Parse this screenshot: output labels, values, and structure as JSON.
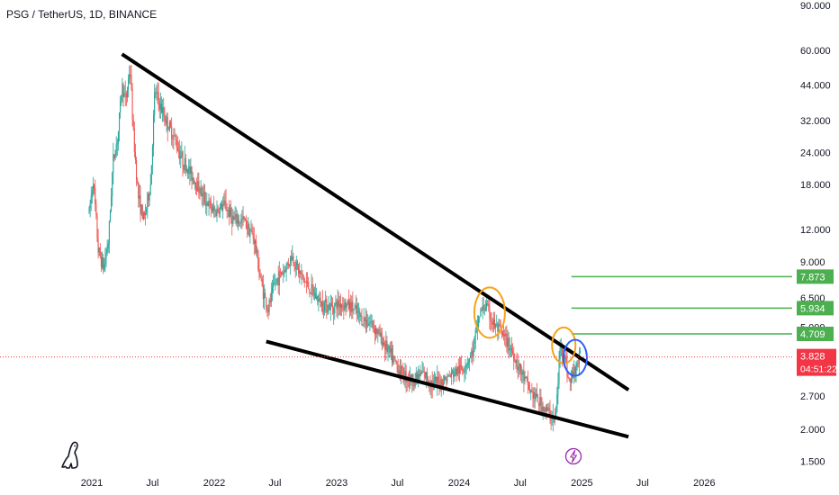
{
  "symbol": {
    "title": "PSG / TetherUS, 1D, BINANCE"
  },
  "colors": {
    "up": "#26a69a",
    "down": "#ef5350",
    "trendline": "#000000",
    "level_line": "#4caf50",
    "level_box": "#4caf50",
    "price_box": "#f23645",
    "circle_orange": "#f7a21b",
    "circle_blue": "#2962ff",
    "flash_icon": "#9c27b0"
  },
  "chart_data": {
    "type": "candlestick",
    "scale": "log",
    "ylim": [
      1.4,
      95
    ],
    "y_ticks": [
      {
        "value": 90,
        "label": "90.000"
      },
      {
        "value": 60,
        "label": "60.000"
      },
      {
        "value": 44,
        "label": "44.000"
      },
      {
        "value": 32,
        "label": "32.000"
      },
      {
        "value": 24,
        "label": "24.000"
      },
      {
        "value": 18,
        "label": "18.000"
      },
      {
        "value": 12,
        "label": "12.000"
      },
      {
        "value": 9,
        "label": "9.000"
      },
      {
        "value": 6.5,
        "label": "6.500"
      },
      {
        "value": 5.0,
        "label": "5.000"
      },
      {
        "value": 2.7,
        "label": "2.700"
      },
      {
        "value": 2.0,
        "label": "2.000"
      },
      {
        "value": 1.5,
        "label": "1.500"
      }
    ],
    "x_ticks": [
      {
        "date": "2021-01-01",
        "label": "2021"
      },
      {
        "date": "2021-07-01",
        "label": "Jul"
      },
      {
        "date": "2022-01-01",
        "label": "2022"
      },
      {
        "date": "2022-07-01",
        "label": "Jul"
      },
      {
        "date": "2023-01-01",
        "label": "2023"
      },
      {
        "date": "2023-07-01",
        "label": "Jul"
      },
      {
        "date": "2024-01-01",
        "label": "2024"
      },
      {
        "date": "2024-07-01",
        "label": "Jul"
      },
      {
        "date": "2025-01-01",
        "label": "2025"
      },
      {
        "date": "2025-07-01",
        "label": "Jul"
      },
      {
        "date": "2026-01-01",
        "label": "2026"
      }
    ],
    "price_path": [
      [
        "2020-12-24",
        14
      ],
      [
        "2021-01-05",
        19
      ],
      [
        "2021-01-20",
        10
      ],
      [
        "2021-02-05",
        8.5
      ],
      [
        "2021-02-20",
        11
      ],
      [
        "2021-03-05",
        22
      ],
      [
        "2021-03-20",
        28
      ],
      [
        "2021-04-01",
        44
      ],
      [
        "2021-04-12",
        38
      ],
      [
        "2021-04-25",
        52
      ],
      [
        "2021-05-05",
        28
      ],
      [
        "2021-05-20",
        16
      ],
      [
        "2021-06-05",
        13
      ],
      [
        "2021-06-25",
        18
      ],
      [
        "2021-07-08",
        42
      ],
      [
        "2021-07-25",
        36
      ],
      [
        "2021-08-10",
        32
      ],
      [
        "2021-09-01",
        28
      ],
      [
        "2021-10-01",
        22
      ],
      [
        "2021-11-01",
        19
      ],
      [
        "2021-12-01",
        16
      ],
      [
        "2022-01-01",
        14
      ],
      [
        "2022-02-01",
        15
      ],
      [
        "2022-03-01",
        13
      ],
      [
        "2022-04-01",
        13
      ],
      [
        "2022-05-01",
        11
      ],
      [
        "2022-05-20",
        7.5
      ],
      [
        "2022-06-10",
        5.8
      ],
      [
        "2022-07-01",
        7.5
      ],
      [
        "2022-08-01",
        8.5
      ],
      [
        "2022-08-20",
        9.5
      ],
      [
        "2022-09-15",
        8
      ],
      [
        "2022-10-15",
        7
      ],
      [
        "2022-11-15",
        6.2
      ],
      [
        "2022-12-15",
        6.0
      ],
      [
        "2023-01-15",
        6.2
      ],
      [
        "2023-02-15",
        6.0
      ],
      [
        "2023-03-15",
        5.4
      ],
      [
        "2023-04-15",
        5.2
      ],
      [
        "2023-05-15",
        4.5
      ],
      [
        "2023-06-15",
        3.8
      ],
      [
        "2023-07-15",
        3.3
      ],
      [
        "2023-08-15",
        3.1
      ],
      [
        "2023-09-15",
        3.3
      ],
      [
        "2023-10-15",
        3.0
      ],
      [
        "2023-11-15",
        3.1
      ],
      [
        "2023-12-15",
        3.3
      ],
      [
        "2024-01-15",
        3.5
      ],
      [
        "2024-02-10",
        4.0
      ],
      [
        "2024-03-01",
        5.6
      ],
      [
        "2024-03-20",
        6.1
      ],
      [
        "2024-04-10",
        5.2
      ],
      [
        "2024-05-01",
        4.8
      ],
      [
        "2024-06-01",
        4.2
      ],
      [
        "2024-07-01",
        3.4
      ],
      [
        "2024-08-01",
        2.8
      ],
      [
        "2024-09-01",
        2.5
      ],
      [
        "2024-10-01",
        2.25
      ],
      [
        "2024-10-15",
        2.2
      ],
      [
        "2024-10-28",
        4.2
      ],
      [
        "2024-11-08",
        4.0
      ],
      [
        "2024-11-25",
        3.0
      ],
      [
        "2024-12-10",
        3.4
      ],
      [
        "2024-12-27",
        3.828
      ]
    ],
    "trendlines": [
      {
        "from": [
          "2021-04-01",
          58
        ],
        "to": [
          "2025-05-20",
          2.85
        ]
      },
      {
        "from": [
          "2022-06-05",
          4.4
        ],
        "to": [
          "2025-05-20",
          1.87
        ]
      }
    ],
    "horizontal_levels": [
      {
        "value": 7.873,
        "label": "7.873",
        "from": "2024-12-01"
      },
      {
        "value": 5.934,
        "label": "5.934",
        "from": "2024-12-01"
      },
      {
        "value": 4.709,
        "label": "4.709",
        "from": "2024-12-01"
      }
    ],
    "current_price": {
      "value": 3.828,
      "label": "3.828",
      "countdown": "04:51:22"
    },
    "circles": [
      {
        "center": [
          "2024-04-01",
          5.7
        ],
        "color": "orange",
        "size": "large"
      },
      {
        "center": [
          "2024-11-08",
          4.25
        ],
        "color": "orange",
        "size": "small"
      },
      {
        "center": [
          "2024-12-12",
          3.8
        ],
        "color": "blue",
        "size": "small"
      }
    ]
  }
}
